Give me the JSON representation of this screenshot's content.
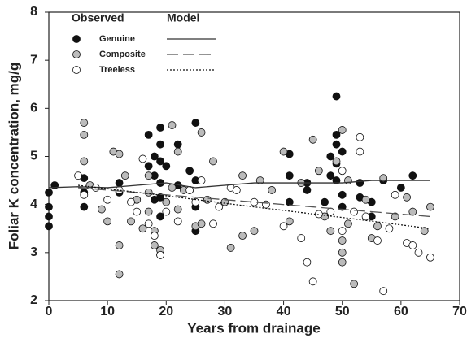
{
  "chart_data": {
    "type": "scatter",
    "x_label": "Years from drainage",
    "y_label": "Foliar K concentration, mg/g",
    "xlim": [
      0,
      70
    ],
    "ylim": [
      2,
      8
    ],
    "xticks": [
      0,
      10,
      20,
      30,
      40,
      50,
      60,
      70
    ],
    "yticks": [
      2,
      3,
      4,
      5,
      6,
      7,
      8
    ],
    "legend_titles": [
      "Observed",
      "Model"
    ],
    "legend": "upper left",
    "series": [
      {
        "name": "Genuine",
        "color": "#111111",
        "line_color": "#333333",
        "line_style": "solid",
        "x": [
          0,
          0,
          0,
          0,
          1,
          6,
          6,
          6,
          12,
          12,
          17,
          17,
          18,
          18,
          18,
          19,
          19,
          19,
          19,
          19,
          19,
          20,
          22,
          22,
          24,
          24,
          25,
          25,
          25,
          25,
          41,
          41,
          41,
          44,
          44,
          47,
          48,
          48,
          49,
          49,
          49,
          49,
          49,
          50,
          50,
          50,
          53,
          53,
          55,
          55,
          57,
          60,
          62
        ],
        "values": [
          3.55,
          3.75,
          3.95,
          4.25,
          4.4,
          3.95,
          4.25,
          4.55,
          4.25,
          4.45,
          4.8,
          5.45,
          4.1,
          4.6,
          5.0,
          5.6,
          5.25,
          4.9,
          4.45,
          4.15,
          3.75,
          4.8,
          4.4,
          5.25,
          4.7,
          4.3,
          5.7,
          4.5,
          3.95,
          3.45,
          4.6,
          4.05,
          5.05,
          4.3,
          4.45,
          4.05,
          4.6,
          5.0,
          6.25,
          5.45,
          5.25,
          4.85,
          4.5,
          4.2,
          5.1,
          3.95,
          4.15,
          4.45,
          4.05,
          3.75,
          4.5,
          4.35,
          4.6
        ],
        "model_x": [
          0,
          5,
          10,
          15,
          20,
          25,
          30,
          35,
          40,
          45,
          50,
          55,
          60,
          65
        ],
        "model_values": [
          4.35,
          4.37,
          4.35,
          4.4,
          4.45,
          4.35,
          4.4,
          4.45,
          4.45,
          4.45,
          4.45,
          4.5,
          4.5,
          4.5
        ]
      },
      {
        "name": "Composite",
        "color": "#bbbbbb",
        "line_color": "#555555",
        "line_style": "dashed",
        "x": [
          6,
          6,
          6,
          7,
          9,
          10,
          11,
          12,
          12,
          12,
          13,
          14,
          15,
          16,
          17,
          17,
          17,
          18,
          18,
          19,
          19,
          20,
          21,
          21,
          22,
          22,
          23,
          25,
          26,
          26,
          27,
          28,
          30,
          31,
          33,
          33,
          35,
          36,
          38,
          40,
          41,
          43,
          45,
          46,
          47,
          48,
          49,
          50,
          50,
          50,
          50,
          51,
          51,
          52,
          54,
          55,
          56,
          57,
          59,
          61,
          62,
          64,
          65
        ],
        "values": [
          5.7,
          5.45,
          4.9,
          4.4,
          3.9,
          3.65,
          5.1,
          5.05,
          3.15,
          2.55,
          4.6,
          3.65,
          4.1,
          3.5,
          3.85,
          4.25,
          4.6,
          3.15,
          3.45,
          2.95,
          3.05,
          4.05,
          5.65,
          4.35,
          5.1,
          3.9,
          4.3,
          3.55,
          5.5,
          3.6,
          4.1,
          4.9,
          4.05,
          3.1,
          4.6,
          3.35,
          3.45,
          4.5,
          4.3,
          5.1,
          3.65,
          4.45,
          5.35,
          4.7,
          3.75,
          3.45,
          4.9,
          5.55,
          3.25,
          3.0,
          2.8,
          4.5,
          3.6,
          2.35,
          4.1,
          3.3,
          3.55,
          4.55,
          3.75,
          4.15,
          3.85,
          3.45,
          3.95
        ],
        "model_x": [
          5,
          20,
          35,
          50,
          65
        ],
        "model_values": [
          4.35,
          4.2,
          4.05,
          3.9,
          3.75
        ]
      },
      {
        "name": "Treeless",
        "color": "#ffffff",
        "line_color": "#111111",
        "line_style": "dotted",
        "x": [
          5,
          6,
          8,
          10,
          12,
          14,
          15,
          16,
          17,
          18,
          19,
          20,
          22,
          24,
          25,
          26,
          28,
          29,
          31,
          32,
          35,
          37,
          40,
          43,
          44,
          45,
          46,
          48,
          50,
          50,
          52,
          53,
          53,
          54,
          56,
          57,
          58,
          59,
          61,
          62,
          63,
          65
        ],
        "values": [
          4.6,
          4.2,
          4.35,
          4.1,
          4.3,
          4.05,
          3.85,
          4.95,
          3.6,
          3.35,
          2.95,
          3.85,
          3.65,
          4.3,
          4.05,
          4.5,
          3.6,
          3.95,
          4.35,
          4.3,
          4.05,
          4.0,
          3.55,
          3.3,
          2.8,
          2.4,
          3.8,
          3.85,
          3.45,
          4.7,
          3.85,
          5.4,
          5.1,
          3.75,
          3.25,
          2.2,
          3.5,
          4.2,
          3.2,
          3.15,
          3.0,
          2.9
        ],
        "model_x": [
          5,
          20,
          35,
          50,
          65
        ],
        "model_values": [
          4.4,
          4.18,
          3.95,
          3.73,
          3.5
        ]
      }
    ]
  }
}
